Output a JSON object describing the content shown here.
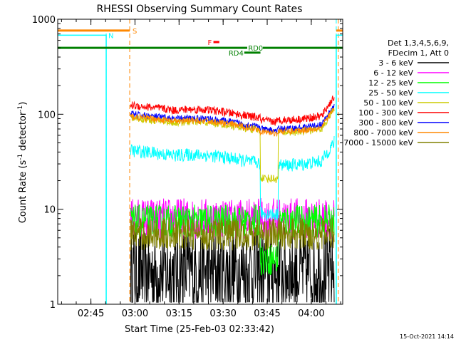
{
  "chart_data": {
    "type": "line",
    "title": "RHESSI Observing Summary Count Rates",
    "xlabel": "Start Time (25-Feb-03 02:33:42)",
    "ylabel_main": "Count Rate (s",
    "ylabel_sup1": "-1",
    "ylabel_mid": " detector",
    "ylabel_sup2": "-1",
    "ylabel_end": ")",
    "timestamp": "15-Oct-2021 14:14",
    "yscale": "log",
    "ylim": [
      1,
      1000
    ],
    "xlim_minutes": [
      0,
      97
    ],
    "x_ticks": [
      {
        "label": "02:45",
        "min": 11.3
      },
      {
        "label": "03:00",
        "min": 26.3
      },
      {
        "label": "03:15",
        "min": 41.3
      },
      {
        "label": "03:30",
        "min": 56.3
      },
      {
        "label": "03:45",
        "min": 71.3
      },
      {
        "label": "04:00",
        "min": 86.3
      }
    ],
    "y_ticks": [
      {
        "label": "1",
        "value": 1
      },
      {
        "label": "10",
        "value": 10
      },
      {
        "label": "100",
        "value": 100
      },
      {
        "label": "1000",
        "value": 1000
      }
    ],
    "legend": {
      "header1": "Det 1,3,4,5,6,9,",
      "header2": "FDecim 1, Att 0",
      "position": "right"
    },
    "series": [
      {
        "name": "3 - 6 keV",
        "color": "#000000",
        "base": 2.2,
        "noise": 0.55
      },
      {
        "name": "6 - 12 keV",
        "color": "#ff00ff",
        "base": 8.0,
        "noise": 0.25
      },
      {
        "name": "12 - 25 keV",
        "color": "#00ff00",
        "base": 7.5,
        "noise": 0.2
      },
      {
        "name": "25 - 50 keV",
        "color": "#00ffff",
        "base": 35,
        "noise": 0.08
      },
      {
        "name": "50 - 100 keV",
        "color": "#cccc00",
        "base": 78,
        "noise": 0.05
      },
      {
        "name": "100 - 300 keV",
        "color": "#ff0000",
        "base": 105,
        "noise": 0.05
      },
      {
        "name": "300 - 800 keV",
        "color": "#0000ff",
        "base": 85,
        "noise": 0.04
      },
      {
        "name": "800 - 7000 keV",
        "color": "#ff8800",
        "base": 80,
        "noise": 0.04
      },
      {
        "name": "7000 - 15000 keV",
        "color": "#808000",
        "base": 5.5,
        "noise": 0.2
      }
    ],
    "flags": [
      {
        "label": "S",
        "color": "#ff8800"
      },
      {
        "label": "N",
        "color": "#00ffff"
      },
      {
        "label": "F",
        "color": "#ff0000"
      },
      {
        "label": "RD0",
        "color": "#008000"
      },
      {
        "label": "RD4",
        "color": "#008000"
      }
    ]
  }
}
